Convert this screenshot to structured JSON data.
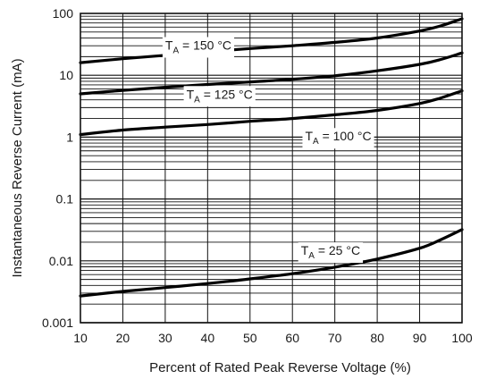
{
  "chart_data": {
    "type": "line",
    "title": "",
    "xlabel": "Percent of Rated Peak Reverse Voltage (%)",
    "ylabel": "Instantaneous Reverse Current (mA)",
    "xlim": [
      10,
      100
    ],
    "ylim": [
      0.001,
      100
    ],
    "yscale": "log",
    "grid": true,
    "x_ticks": [
      10,
      20,
      30,
      40,
      50,
      60,
      70,
      80,
      90,
      100
    ],
    "x_tick_labels": [
      "10",
      "20",
      "30",
      "40",
      "50",
      "60",
      "70",
      "80",
      "90",
      "100"
    ],
    "y_ticks": [
      0.001,
      0.01,
      0.1,
      1,
      10,
      100
    ],
    "y_tick_labels": [
      "0.001",
      "0.01",
      "0.1",
      "1",
      "10",
      "100"
    ],
    "series": [
      {
        "name": "TA = 150 °C",
        "label_main": "T",
        "label_sub": "A",
        "label_rest": " = 150 °C",
        "label_at": [
          30,
          26
        ],
        "x": [
          10,
          20,
          30,
          40,
          50,
          60,
          70,
          80,
          90,
          95,
          100
        ],
        "y": [
          16,
          18.5,
          21,
          24,
          27,
          30,
          34,
          40,
          52,
          63,
          82
        ]
      },
      {
        "name": "TA = 125 °C",
        "label_main": "T",
        "label_sub": "A",
        "label_rest": " = 125 °C",
        "label_at": [
          35,
          4.2
        ],
        "x": [
          10,
          20,
          30,
          40,
          50,
          60,
          70,
          80,
          90,
          95,
          100
        ],
        "y": [
          5,
          5.7,
          6.4,
          7.1,
          7.8,
          8.6,
          9.8,
          11.8,
          15,
          18,
          23
        ]
      },
      {
        "name": "TA = 100 °C",
        "label_main": "T",
        "label_sub": "A",
        "label_rest": " = 100 °C",
        "label_at": [
          63,
          0.88
        ],
        "x": [
          10,
          20,
          30,
          40,
          50,
          60,
          70,
          80,
          90,
          95,
          100
        ],
        "y": [
          1.1,
          1.3,
          1.45,
          1.6,
          1.8,
          2.0,
          2.3,
          2.7,
          3.5,
          4.3,
          5.6
        ]
      },
      {
        "name": "TA = 25 °C",
        "label_main": "T",
        "label_sub": "A",
        "label_rest": " = 25 °C",
        "label_at": [
          62,
          0.0125
        ],
        "x": [
          10,
          20,
          30,
          40,
          50,
          60,
          70,
          80,
          90,
          95,
          100
        ],
        "y": [
          0.0027,
          0.0032,
          0.0037,
          0.0043,
          0.0051,
          0.0062,
          0.0079,
          0.0107,
          0.016,
          0.022,
          0.032
        ]
      }
    ]
  }
}
